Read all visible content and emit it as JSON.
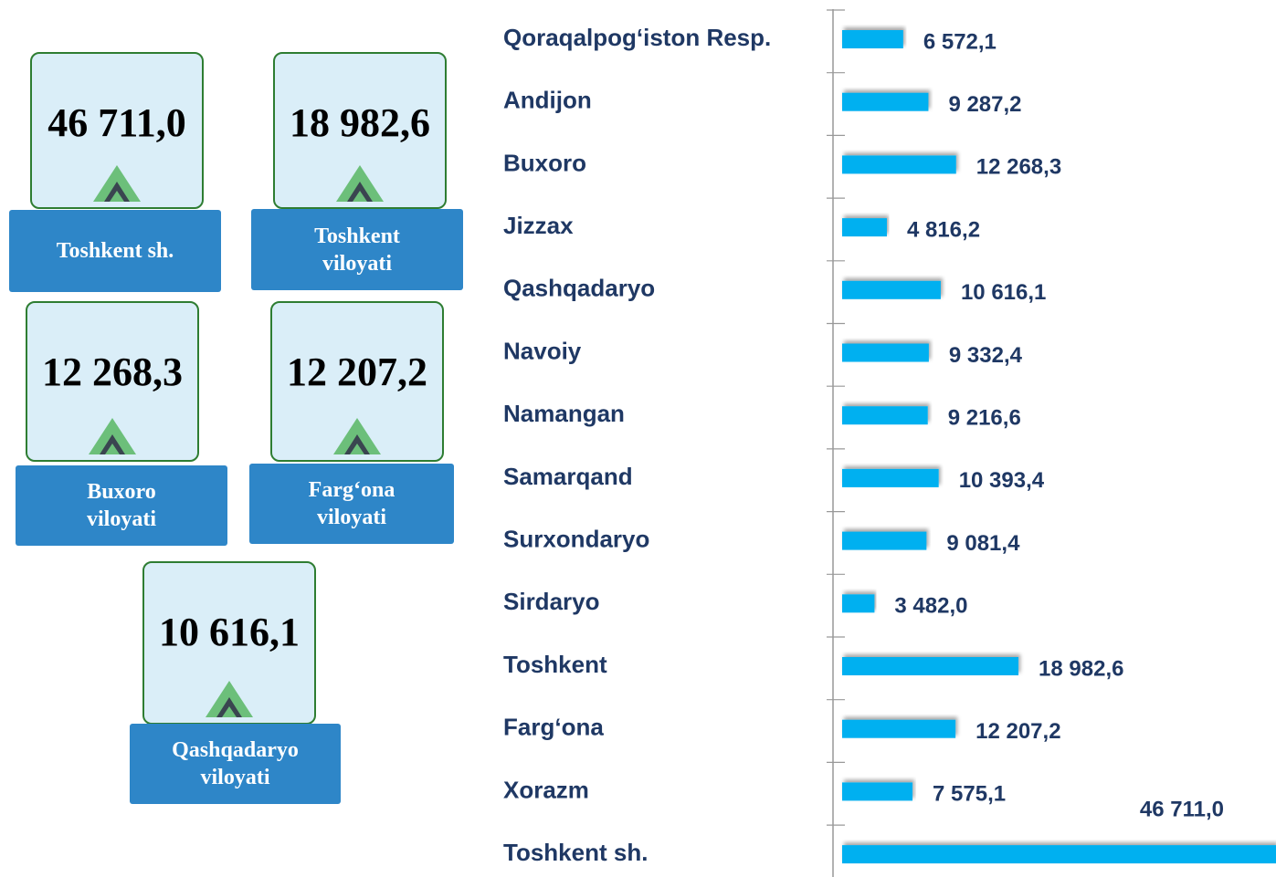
{
  "cards": [
    {
      "value": "46 711,0",
      "label": "Toshkent sh."
    },
    {
      "value": "18 982,6",
      "label": "Toshkent viloyati"
    },
    {
      "value": "12 268,3",
      "label": "Buxoro viloyati"
    },
    {
      "value": "12 207,2",
      "label": "Farg‘ona viloyati"
    },
    {
      "value": "10 616,1",
      "label": "Qashqadaryo viloyati"
    }
  ],
  "chart_data": {
    "type": "bar",
    "orientation": "horizontal",
    "color": "#00b0f0",
    "categories": [
      "Qoraqalpog‘iston Resp.",
      "Andijon",
      "Buxoro",
      "Jizzax",
      "Qashqadaryo",
      "Navoiy",
      "Namangan",
      "Samarqand",
      "Surxondaryo",
      "Sirdaryo",
      "Toshkent",
      "Farg‘ona",
      "Xorazm",
      "Toshkent sh."
    ],
    "values": [
      6572.1,
      9287.2,
      12268.3,
      4816.2,
      10616.1,
      9332.4,
      9216.6,
      10393.4,
      9081.4,
      3482.0,
      18982.6,
      12207.2,
      7575.1,
      46711.0
    ],
    "value_labels": [
      "6 572,1",
      "9 287,2",
      "12 268,3",
      "4 816,2",
      "10 616,1",
      "9 332,4",
      "9 216,6",
      "10 393,4",
      "9 081,4",
      "3 482,0",
      "18 982,6",
      "12 207,2",
      "7 575,1",
      "46 711,0"
    ]
  }
}
